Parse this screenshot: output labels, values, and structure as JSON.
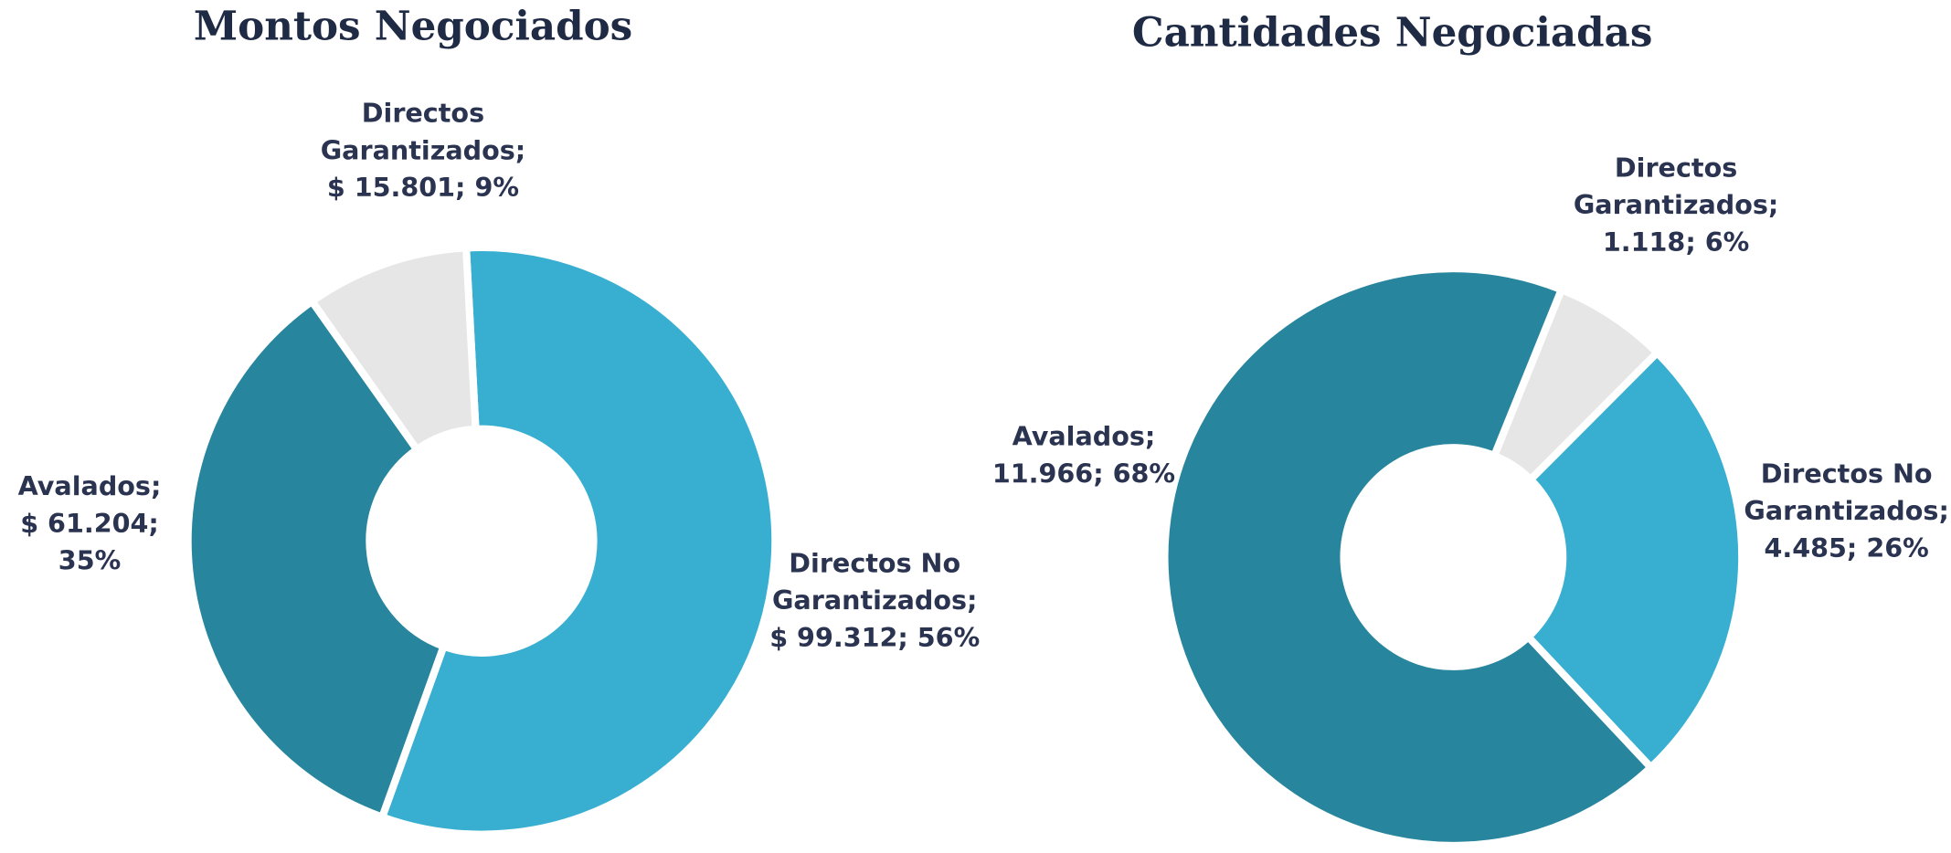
{
  "chart_data": [
    {
      "type": "donut",
      "title": "Montos Negociados",
      "categories": [
        "Directos No Garantizados;",
        "Avalados;",
        "Directos Garantizados;"
      ],
      "amounts": [
        99312,
        61204,
        15801
      ],
      "amount_labels": [
        "$ 99.312;",
        "$ 61.204;",
        "$ 15.801;"
      ],
      "values": [
        56,
        35,
        9
      ],
      "value_labels": [
        "56%",
        "35%",
        "9%"
      ],
      "colors": [
        "#38afd0",
        "#27859d",
        "#e6e6e6"
      ]
    },
    {
      "type": "donut",
      "title": "Cantidades Negociadas",
      "categories": [
        "Directos Garantizados;",
        "Directos No Garantizados;",
        "Avalados;"
      ],
      "amounts": [
        1118,
        4485,
        11966
      ],
      "amount_labels": [
        "1.118;",
        "4.485;",
        "11.966;"
      ],
      "values": [
        6,
        26,
        68
      ],
      "value_labels": [
        "6%",
        "26%",
        "68%"
      ],
      "colors": [
        "#e6e6e6",
        "#38afd0",
        "#27859d"
      ]
    }
  ]
}
